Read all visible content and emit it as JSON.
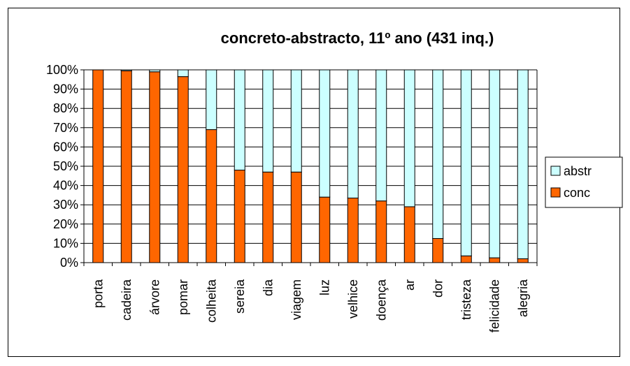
{
  "chart_data": {
    "type": "bar",
    "stacked": true,
    "percent": true,
    "title": "concreto-abstracto, 11º ano (431 inq.)",
    "xlabel": "",
    "ylabel": "",
    "ylim": [
      0,
      100
    ],
    "yticks": [
      "0%",
      "10%",
      "20%",
      "30%",
      "40%",
      "50%",
      "60%",
      "70%",
      "80%",
      "90%",
      "100%"
    ],
    "categories": [
      "porta",
      "cadeira",
      "árvore",
      "pomar",
      "colheita",
      "sereia",
      "dia",
      "viagem",
      "luz",
      "velhice",
      "doença",
      "ar",
      "dor",
      "tristeza",
      "felicidade",
      "alegria"
    ],
    "series": [
      {
        "name": "conc",
        "color": "#ff6600",
        "values": [
          100,
          99.5,
          99,
          96.5,
          69,
          48,
          47,
          47,
          34,
          33.5,
          32,
          29,
          12.5,
          3.5,
          2.5,
          2
        ]
      },
      {
        "name": "abstr",
        "color": "#ccffff",
        "values": [
          0,
          0.5,
          1,
          3.5,
          31,
          52,
          53,
          53,
          66,
          66.5,
          68,
          71,
          87.5,
          96.5,
          97.5,
          98
        ]
      }
    ],
    "grid": true,
    "legend_position": "right",
    "legend_order": [
      "abstr",
      "conc"
    ]
  }
}
